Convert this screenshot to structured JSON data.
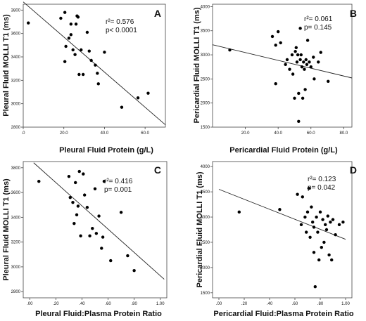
{
  "chart_data": [
    {
      "type": "scatter",
      "panel_label": "A",
      "xlabel": "Pleural Fluid Protein (g/L)",
      "ylabel": "Pleural Fluid MOLLI T1 (ms)",
      "stats": [
        "r²= 0.576",
        "p< 0.0001"
      ],
      "xlim": [
        0,
        70
      ],
      "ylim": [
        2800,
        3850
      ],
      "xticks": [
        {
          "v": 0,
          "label": ".0"
        },
        {
          "v": 20,
          "label": "20.0"
        },
        {
          "v": 40,
          "label": "40.0"
        },
        {
          "v": 60,
          "label": "60.0"
        }
      ],
      "yticks": [
        {
          "v": 2800,
          "label": "2800"
        },
        {
          "v": 3000,
          "label": "3000"
        },
        {
          "v": 3200,
          "label": "3200"
        },
        {
          "v": 3400,
          "label": "3400"
        },
        {
          "v": 3600,
          "label": "3600"
        },
        {
          "v": 3800,
          "label": "3800"
        }
      ],
      "fit_line": [
        [
          0,
          3870
        ],
        [
          70,
          2820
        ]
      ],
      "points": [
        [
          2.5,
          3690
        ],
        [
          18.5,
          3730
        ],
        [
          20.5,
          3780
        ],
        [
          20.5,
          3360
        ],
        [
          21.0,
          3490
        ],
        [
          22.5,
          3560
        ],
        [
          23.5,
          3590
        ],
        [
          23.5,
          3680
        ],
        [
          24.5,
          3460
        ],
        [
          25.5,
          3420
        ],
        [
          26.0,
          3680
        ],
        [
          26.5,
          3750
        ],
        [
          27.0,
          3740
        ],
        [
          27.5,
          3250
        ],
        [
          28.5,
          3460
        ],
        [
          29.5,
          3250
        ],
        [
          31.5,
          3610
        ],
        [
          32.5,
          3450
        ],
        [
          33.5,
          3370
        ],
        [
          35.5,
          3330
        ],
        [
          36.5,
          3260
        ],
        [
          37.0,
          3170
        ],
        [
          40.0,
          3440
        ],
        [
          48.5,
          2970
        ],
        [
          56.5,
          3050
        ],
        [
          61.5,
          3090
        ]
      ]
    },
    {
      "type": "scatter",
      "panel_label": "B",
      "xlabel": "Pericardial Fluid Protein (g/L)",
      "ylabel": "Pericardial Fluid MOLLI T1 (ms)",
      "stats": [
        "r²= 0.061",
        "p= 0.145"
      ],
      "xlim": [
        0,
        85
      ],
      "ylim": [
        1500,
        4050
      ],
      "xticks": [
        {
          "v": 20,
          "label": "20.0"
        },
        {
          "v": 40,
          "label": "40.0"
        },
        {
          "v": 60,
          "label": "60.0"
        },
        {
          "v": 80,
          "label": "80.0"
        }
      ],
      "yticks": [
        {
          "v": 1500,
          "label": "1500"
        },
        {
          "v": 2000,
          "label": "2000"
        },
        {
          "v": 2500,
          "label": "2500"
        },
        {
          "v": 3000,
          "label": "3000"
        },
        {
          "v": 3500,
          "label": "3500"
        },
        {
          "v": 4000,
          "label": "4000"
        }
      ],
      "fit_line": [
        [
          0,
          3210
        ],
        [
          85,
          2520
        ]
      ],
      "points": [
        [
          10.5,
          3100
        ],
        [
          36.5,
          3380
        ],
        [
          38.5,
          3200
        ],
        [
          38.5,
          2400
        ],
        [
          40.0,
          3480
        ],
        [
          41.5,
          3250
        ],
        [
          44.5,
          2800
        ],
        [
          45.5,
          2900
        ],
        [
          47.0,
          2700
        ],
        [
          48.5,
          3000
        ],
        [
          49.0,
          2600
        ],
        [
          50.5,
          3070
        ],
        [
          51.0,
          3150
        ],
        [
          51.5,
          2850
        ],
        [
          52.0,
          3000
        ],
        [
          52.5,
          2200
        ],
        [
          52.5,
          1620
        ],
        [
          53.5,
          3550
        ],
        [
          53.5,
          2900
        ],
        [
          54.0,
          3000
        ],
        [
          54.5,
          2750
        ],
        [
          55.5,
          2850
        ],
        [
          56.0,
          2700
        ],
        [
          56.5,
          2280
        ],
        [
          57.0,
          2900
        ],
        [
          57.5,
          2800
        ],
        [
          58.0,
          3300
        ],
        [
          59.0,
          2850
        ],
        [
          60.0,
          2750
        ],
        [
          61.5,
          2950
        ],
        [
          62.0,
          2500
        ],
        [
          64.5,
          2850
        ],
        [
          66.0,
          3050
        ],
        [
          70.5,
          2450
        ],
        [
          55.0,
          2100
        ],
        [
          50.0,
          2100
        ]
      ]
    },
    {
      "type": "scatter",
      "panel_label": "C",
      "xlabel": "Pleural Fluid:Plasma Protein Ratio",
      "ylabel": "Pleural Fluid MOLLI T1 (ms)",
      "stats": [
        "r²= 0.416",
        "p=  0.001"
      ],
      "xlim": [
        -0.05,
        1.05
      ],
      "ylim": [
        2750,
        3850
      ],
      "xticks": [
        {
          "v": 0.0,
          "label": ".00"
        },
        {
          "v": 0.2,
          "label": ".20"
        },
        {
          "v": 0.4,
          "label": ".40"
        },
        {
          "v": 0.6,
          "label": ".60"
        },
        {
          "v": 0.8,
          "label": ".80"
        },
        {
          "v": 1.0,
          "label": "1.00"
        }
      ],
      "yticks": [
        {
          "v": 2800,
          "label": "2800"
        },
        {
          "v": 3000,
          "label": "3000"
        },
        {
          "v": 3200,
          "label": "3200"
        },
        {
          "v": 3400,
          "label": "3400"
        },
        {
          "v": 3600,
          "label": "3600"
        },
        {
          "v": 3800,
          "label": "3800"
        }
      ],
      "fit_line": [
        [
          0.03,
          3840
        ],
        [
          1.03,
          2900
        ]
      ],
      "points": [
        [
          0.07,
          3690
        ],
        [
          0.3,
          3730
        ],
        [
          0.31,
          3560
        ],
        [
          0.33,
          3520
        ],
        [
          0.34,
          3350
        ],
        [
          0.35,
          3680
        ],
        [
          0.36,
          3420
        ],
        [
          0.37,
          3490
        ],
        [
          0.38,
          3770
        ],
        [
          0.39,
          3250
        ],
        [
          0.41,
          3750
        ],
        [
          0.42,
          3580
        ],
        [
          0.44,
          3480
        ],
        [
          0.46,
          3250
        ],
        [
          0.48,
          3310
        ],
        [
          0.5,
          3630
        ],
        [
          0.51,
          3270
        ],
        [
          0.53,
          3410
        ],
        [
          0.55,
          3150
        ],
        [
          0.56,
          3240
        ],
        [
          0.57,
          3690
        ],
        [
          0.62,
          3050
        ],
        [
          0.7,
          3440
        ],
        [
          0.75,
          3090
        ],
        [
          0.8,
          2970
        ]
      ]
    },
    {
      "type": "scatter",
      "panel_label": "D",
      "xlabel": "Pericardial Fluid:Plasma Protein Ratio",
      "ylabel": "Pericardial Fluid MOLLI T1 (ms)",
      "stats": [
        "r²= 0.123",
        "p= 0.042"
      ],
      "xlim": [
        -0.05,
        1.05
      ],
      "ylim": [
        1400,
        4100
      ],
      "xticks": [
        {
          "v": 0.0,
          "label": ".00"
        },
        {
          "v": 0.2,
          "label": ".20"
        },
        {
          "v": 0.4,
          "label": ".40"
        },
        {
          "v": 0.6,
          "label": ".60"
        },
        {
          "v": 0.8,
          "label": ".80"
        },
        {
          "v": 1.0,
          "label": "1.00"
        }
      ],
      "yticks": [
        {
          "v": 1500,
          "label": "1500"
        },
        {
          "v": 2000,
          "label": "2000"
        },
        {
          "v": 2500,
          "label": "2500"
        },
        {
          "v": 3000,
          "label": "3000"
        },
        {
          "v": 3500,
          "label": "3500"
        },
        {
          "v": 4000,
          "label": "4000"
        }
      ],
      "fit_line": [
        [
          0.0,
          3550
        ],
        [
          1.0,
          2560
        ]
      ],
      "points": [
        [
          0.16,
          3100
        ],
        [
          0.48,
          3150
        ],
        [
          0.62,
          3450
        ],
        [
          0.65,
          2850
        ],
        [
          0.66,
          3400
        ],
        [
          0.68,
          3000
        ],
        [
          0.69,
          2700
        ],
        [
          0.7,
          3100
        ],
        [
          0.71,
          3570
        ],
        [
          0.72,
          2600
        ],
        [
          0.73,
          3200
        ],
        [
          0.74,
          2900
        ],
        [
          0.75,
          2800
        ],
        [
          0.75,
          2300
        ],
        [
          0.76,
          1620
        ],
        [
          0.77,
          3000
        ],
        [
          0.78,
          2700
        ],
        [
          0.79,
          2150
        ],
        [
          0.8,
          3100
        ],
        [
          0.81,
          2400
        ],
        [
          0.82,
          2950
        ],
        [
          0.83,
          2500
        ],
        [
          0.84,
          2850
        ],
        [
          0.85,
          2750
        ],
        [
          0.86,
          3020
        ],
        [
          0.87,
          2250
        ],
        [
          0.88,
          2900
        ],
        [
          0.89,
          2150
        ],
        [
          0.9,
          2950
        ],
        [
          0.92,
          2650
        ],
        [
          0.95,
          2850
        ],
        [
          0.98,
          2900
        ]
      ]
    }
  ]
}
